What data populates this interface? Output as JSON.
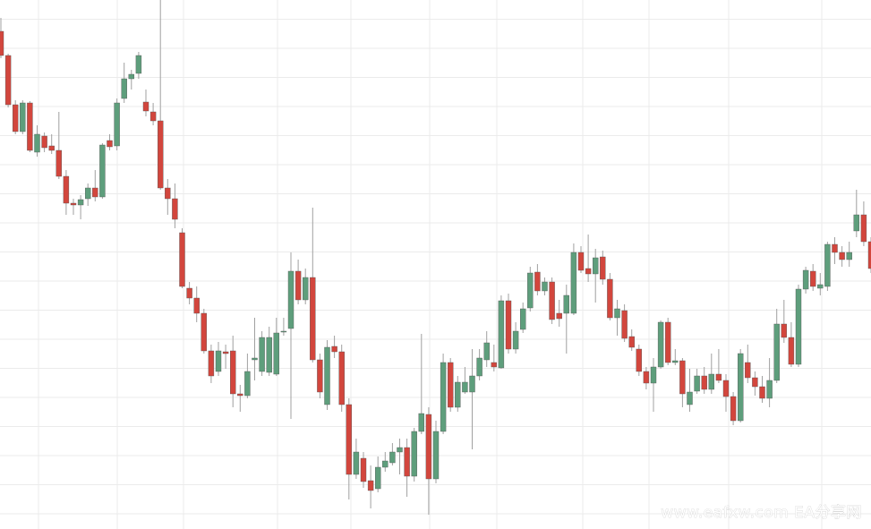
{
  "chart_data": {
    "type": "candlestick",
    "watermark": "www.eafxw.com  EA分享网",
    "up_color": "#5e9e7c",
    "down_color": "#d2463d",
    "wick_color": "#a0a0a0",
    "ylim": [
      0,
      591
    ],
    "open": [
      556,
      529,
      474,
      444,
      476,
      421,
      439,
      428,
      423,
      394,
      364,
      362,
      369,
      381,
      371,
      434,
      428,
      481,
      503,
      509,
      477,
      466,
      456,
      381,
      369,
      331,
      269,
      258,
      241,
      199,
      176,
      198,
      199,
      151,
      149,
      189,
      176,
      175,
      173,
      220,
      224,
      288,
      256,
      281,
      189,
      139,
      204,
      198,
      139,
      61,
      79,
      54,
      45,
      69,
      74,
      86,
      91,
      59,
      109,
      128,
      56,
      109,
      186,
      136,
      153,
      153,
      171,
      189,
      186,
      180,
      255,
      201,
      223,
      247,
      287,
      266,
      276,
      241,
      241,
      241,
      309,
      291,
      285,
      304,
      279,
      236,
      244,
      215,
      201,
      176,
      163,
      181,
      231,
      186,
      188,
      139,
      154,
      171,
      156,
      173,
      166,
      148,
      121,
      186,
      169,
      159,
      146,
      166,
      229,
      214,
      184,
      268,
      288,
      269,
      271,
      318,
      309,
      301,
      333,
      351,
      321
    ],
    "high": [
      571,
      531,
      479,
      479,
      478,
      451,
      443,
      441,
      466,
      401,
      369,
      373,
      386,
      401,
      431,
      441,
      481,
      521,
      513,
      533,
      491,
      476,
      591,
      391,
      386,
      336,
      276,
      271,
      246,
      206,
      209,
      206,
      216,
      161,
      196,
      236,
      221,
      226,
      236,
      236,
      309,
      301,
      291,
      359,
      196,
      211,
      216,
      206,
      146,
      101,
      86,
      71,
      81,
      86,
      96,
      101,
      101,
      113,
      218,
      136,
      121,
      196,
      191,
      171,
      181,
      201,
      201,
      221,
      206,
      261,
      263,
      231,
      253,
      293,
      296,
      281,
      281,
      256,
      273,
      319,
      316,
      329,
      313,
      311,
      286,
      256,
      251,
      223,
      206,
      181,
      191,
      233,
      236,
      201,
      191,
      179,
      179,
      181,
      196,
      201,
      173,
      153,
      201,
      206,
      176,
      171,
      191,
      246,
      256,
      231,
      273,
      293,
      296,
      286,
      321,
      326,
      316,
      321,
      379,
      366,
      326
    ],
    "low": [
      526,
      471,
      441,
      441,
      421,
      416,
      421,
      419,
      391,
      351,
      351,
      346,
      361,
      366,
      369,
      423,
      423,
      476,
      491,
      503,
      461,
      451,
      379,
      351,
      336,
      269,
      251,
      231,
      196,
      163,
      171,
      179,
      136,
      131,
      146,
      166,
      171,
      171,
      171,
      216,
      123,
      251,
      251,
      186,
      146,
      133,
      191,
      131,
      33,
      56,
      46,
      23,
      41,
      64,
      71,
      61,
      36,
      53,
      106,
      16,
      51,
      106,
      131,
      131,
      151,
      89,
      166,
      181,
      176,
      179,
      196,
      196,
      219,
      243,
      261,
      261,
      229,
      226,
      196,
      239,
      286,
      276,
      253,
      273,
      233,
      216,
      209,
      199,
      171,
      156,
      131,
      179,
      183,
      183,
      136,
      131,
      151,
      151,
      151,
      163,
      131,
      116,
      119,
      163,
      149,
      141,
      136,
      163,
      208,
      181,
      181,
      263,
      266,
      261,
      266,
      296,
      293,
      293,
      326,
      316,
      286
    ],
    "close": [
      529,
      474,
      444,
      476,
      423,
      441,
      426,
      423,
      394,
      364,
      362,
      368,
      381,
      371,
      429,
      427,
      476,
      503,
      508,
      529,
      467,
      456,
      381,
      369,
      346,
      271,
      258,
      241,
      199,
      171,
      199,
      196,
      151,
      149,
      176,
      191,
      214,
      214,
      219,
      221,
      288,
      256,
      281,
      189,
      153,
      203,
      198,
      139,
      61,
      86,
      53,
      43,
      69,
      76,
      86,
      91,
      59,
      109,
      129,
      56,
      109,
      186,
      136,
      164,
      164,
      171,
      191,
      208,
      181,
      255,
      201,
      221,
      246,
      286,
      266,
      276,
      234,
      235,
      261,
      309,
      289,
      285,
      303,
      279,
      236,
      246,
      213,
      203,
      176,
      163,
      181,
      231,
      186,
      188,
      151,
      153,
      171,
      156,
      173,
      166,
      148,
      121,
      196,
      169,
      159,
      146,
      166,
      229,
      214,
      184,
      268,
      289,
      271,
      273,
      318,
      309,
      301,
      309,
      351,
      321,
      291
    ]
  }
}
